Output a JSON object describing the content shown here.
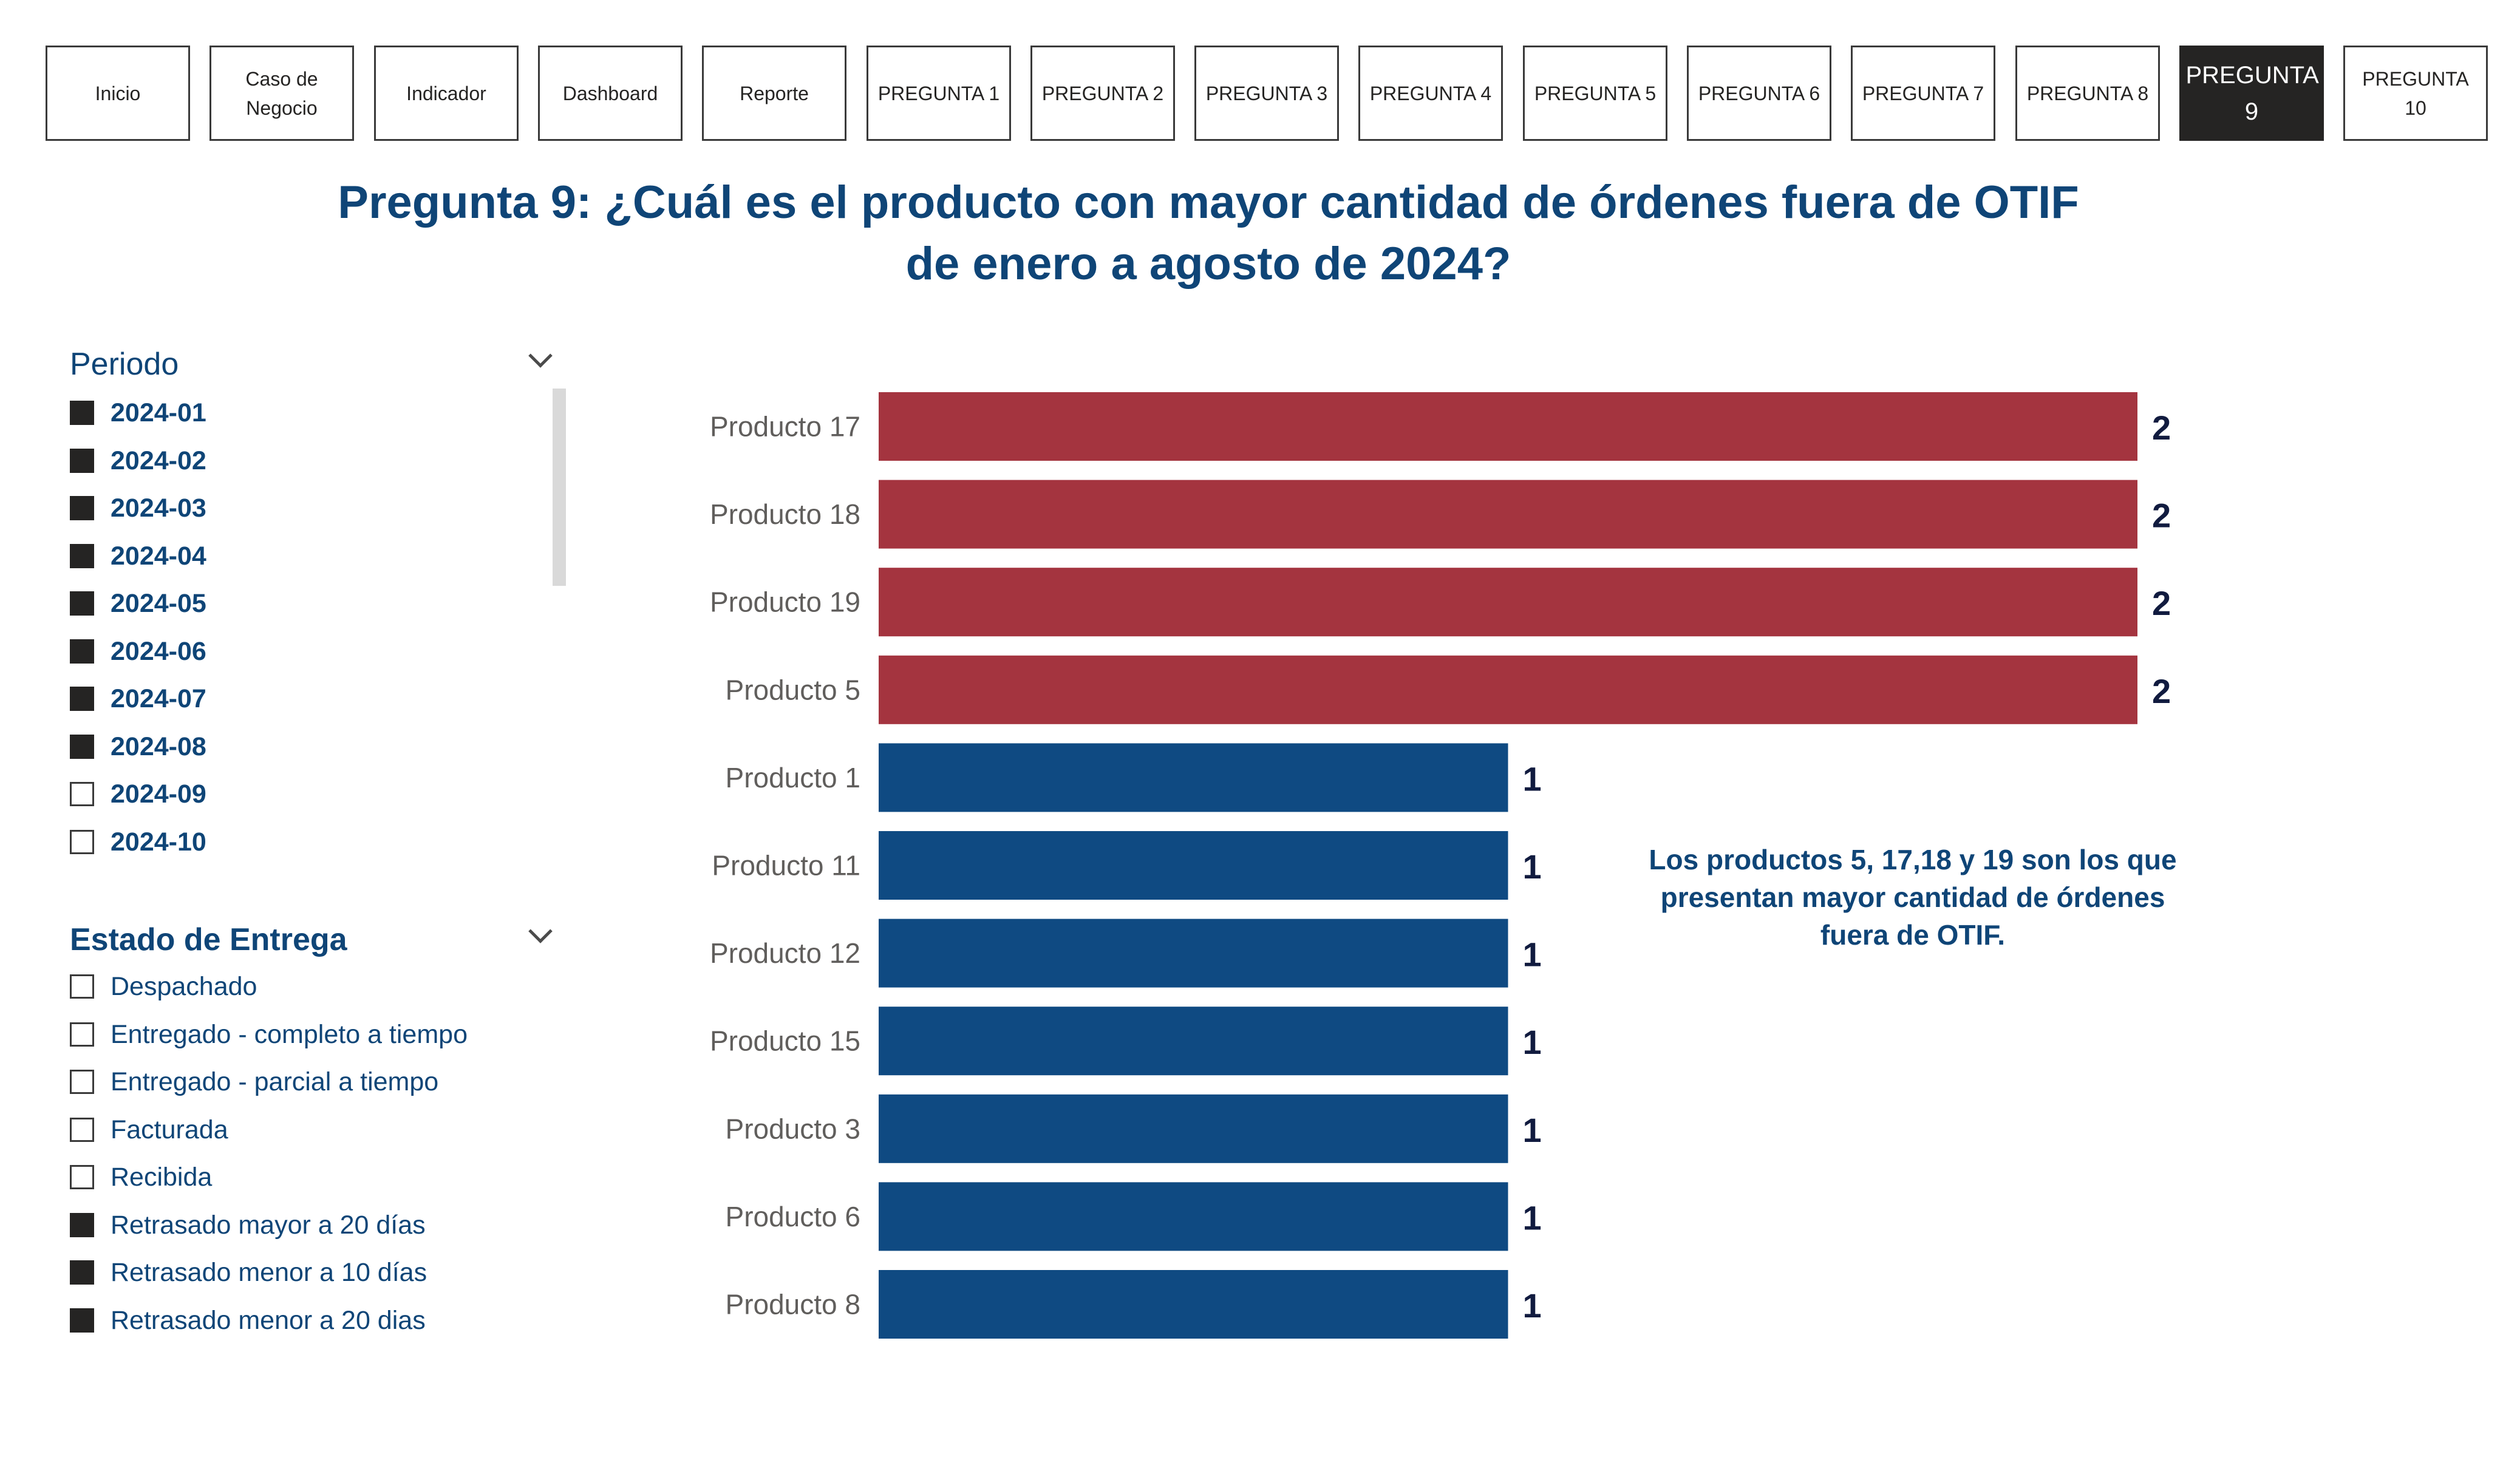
{
  "nav": {
    "tabs": [
      {
        "label": "Inicio",
        "active": false
      },
      {
        "label": "Caso de Negocio",
        "active": false
      },
      {
        "label": "Indicador",
        "active": false
      },
      {
        "label": "Dashboard",
        "active": false
      },
      {
        "label": "Reporte",
        "active": false
      },
      {
        "label": "PREGUNTA 1",
        "active": false
      },
      {
        "label": "PREGUNTA 2",
        "active": false
      },
      {
        "label": "PREGUNTA 3",
        "active": false
      },
      {
        "label": "PREGUNTA 4",
        "active": false
      },
      {
        "label": "PREGUNTA 5",
        "active": false
      },
      {
        "label": "PREGUNTA 6",
        "active": false
      },
      {
        "label": "PREGUNTA 7",
        "active": false
      },
      {
        "label": "PREGUNTA 8",
        "active": false
      },
      {
        "label": "PREGUNTA 9",
        "active": true
      },
      {
        "label": "PREGUNTA 10",
        "active": false
      }
    ]
  },
  "page": {
    "title_line1": "Pregunta 9: ¿Cuál es el producto con mayor cantidad de órdenes fuera de OTIF",
    "title_line2": "de enero a agosto de 2024?"
  },
  "slicers": {
    "periodo": {
      "title": "Periodo",
      "chevron_icon": "chevron-down-icon",
      "items": [
        {
          "label": "2024-01",
          "checked": true
        },
        {
          "label": "2024-02",
          "checked": true
        },
        {
          "label": "2024-03",
          "checked": true
        },
        {
          "label": "2024-04",
          "checked": true
        },
        {
          "label": "2024-05",
          "checked": true
        },
        {
          "label": "2024-06",
          "checked": true
        },
        {
          "label": "2024-07",
          "checked": true
        },
        {
          "label": "2024-08",
          "checked": true
        },
        {
          "label": "2024-09",
          "checked": false
        },
        {
          "label": "2024-10",
          "checked": false
        }
      ]
    },
    "estado": {
      "title": "Estado de Entrega",
      "chevron_icon": "chevron-down-icon",
      "items": [
        {
          "label": "Despachado",
          "checked": false
        },
        {
          "label": "Entregado - completo a tiempo",
          "checked": false
        },
        {
          "label": "Entregado - parcial a tiempo",
          "checked": false
        },
        {
          "label": "Facturada",
          "checked": false
        },
        {
          "label": "Recibida",
          "checked": false
        },
        {
          "label": "Retrasado mayor a 20 días",
          "checked": true
        },
        {
          "label": "Retrasado menor a 10 días",
          "checked": true
        },
        {
          "label": "Retrasado menor a 20 dias",
          "checked": true
        }
      ]
    }
  },
  "chart_data": {
    "type": "bar",
    "orientation": "horizontal",
    "categories": [
      "Producto 17",
      "Producto 18",
      "Producto 19",
      "Producto 5",
      "Producto 1",
      "Producto 11",
      "Producto 12",
      "Producto 15",
      "Producto 3",
      "Producto 6",
      "Producto 8"
    ],
    "values": [
      2,
      2,
      2,
      2,
      1,
      1,
      1,
      1,
      1,
      1,
      1
    ],
    "xlim": [
      0,
      2
    ],
    "data_labels": true,
    "grid": false,
    "colors": {
      "highlight": "#a4343f",
      "default": "#0f4a82"
    },
    "title": "",
    "xlabel": "",
    "ylabel": ""
  },
  "annotation": {
    "text": "Los productos 5, 17,18 y 19 son los que presentan mayor cantidad de órdenes fuera de OTIF."
  }
}
